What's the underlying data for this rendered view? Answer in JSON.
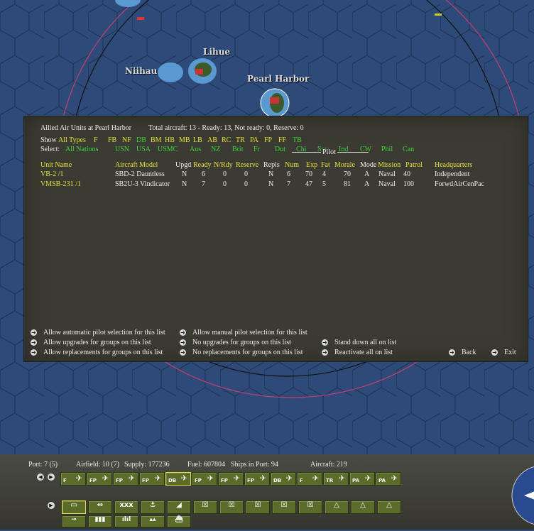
{
  "map": {
    "labels": [
      "Lihue",
      "Niihau",
      "Pearl Harbor"
    ]
  },
  "panel": {
    "title": "Allied Air Units at Pearl Harbor",
    "summary": "Total aircraft: 13 - Ready: 13, Not ready: 0, Reserve: 0",
    "show_label": "Show",
    "types": [
      {
        "t": "All Types",
        "c": "y"
      },
      {
        "t": "F",
        "c": "y"
      },
      {
        "t": "FB",
        "c": "y"
      },
      {
        "t": "NF",
        "c": "y"
      },
      {
        "t": "DB",
        "c": "g"
      },
      {
        "t": "BM",
        "c": "y"
      },
      {
        "t": "HB",
        "c": "y"
      },
      {
        "t": "MB",
        "c": "y"
      },
      {
        "t": "LB",
        "c": "y"
      },
      {
        "t": "AB",
        "c": "y"
      },
      {
        "t": "RC",
        "c": "y"
      },
      {
        "t": "TR",
        "c": "y"
      },
      {
        "t": "PA",
        "c": "y"
      },
      {
        "t": "FP",
        "c": "y"
      },
      {
        "t": "FF",
        "c": "y"
      },
      {
        "t": "TB",
        "c": "g"
      }
    ],
    "select_label": "Select:",
    "nations": [
      "All Nations",
      "USN",
      "USA",
      "USMC",
      "Aus",
      "NZ",
      "Brit",
      "Fr",
      "Dut",
      "Chi",
      "Sov",
      "Ind",
      "CW",
      "Phil",
      "Can"
    ],
    "pilot_group": "Pilot",
    "columns": [
      {
        "t": "Unit Name",
        "c": "y"
      },
      {
        "t": "Aircraft Model",
        "c": "y"
      },
      {
        "t": "Upgd",
        "c": "w"
      },
      {
        "t": "Ready",
        "c": "y"
      },
      {
        "t": "N/Rdy",
        "c": "y"
      },
      {
        "t": "Reserve",
        "c": "y"
      },
      {
        "t": "Repls",
        "c": "w"
      },
      {
        "t": "Num",
        "c": "y"
      },
      {
        "t": "Exp",
        "c": "y"
      },
      {
        "t": "Fat",
        "c": "y"
      },
      {
        "t": "Morale",
        "c": "y"
      },
      {
        "t": "Mode",
        "c": "w"
      },
      {
        "t": "Mission",
        "c": "y"
      },
      {
        "t": "Patrol",
        "c": "y"
      },
      {
        "t": "Headquarters",
        "c": "y"
      }
    ],
    "rows": [
      [
        "VB-2 /1",
        "SBD-2 Dauntless",
        "N",
        "6",
        "0",
        "0",
        "N",
        "6",
        "70",
        "4",
        "70",
        "A",
        "Naval",
        "40",
        "Independent"
      ],
      [
        "VMSB-231 /1",
        "SB2U-3 Vindicator",
        "N",
        "7",
        "0",
        "0",
        "N",
        "7",
        "47",
        "5",
        "81",
        "A",
        "Naval",
        "100",
        "ForwdAirCenPac"
      ]
    ],
    "actions": [
      "Allow automatic pilot selection for this list",
      "Allow manual pilot selection for this list",
      "Allow upgrades for groups on this list",
      "No upgrades for groups on this list",
      "Stand down all on list",
      "Allow replacements for groups on this list",
      "No replacements for groups on this list",
      "Reactivate all on list",
      "Back",
      "Exit"
    ]
  },
  "status": {
    "port": "Port: 7 (5)",
    "airfield": "Airfield: 10 (7)",
    "supply": "Supply: 177236",
    "fuel": "Fuel: 607804",
    "ships": "Ships in Port: 94",
    "aircraft": "Aircraft: 219"
  },
  "air_buttons": [
    "F",
    "FP",
    "FP",
    "FP",
    "DB",
    "FP",
    "FP",
    "FP",
    "DB",
    "F",
    "TR",
    "PA",
    "PA"
  ],
  "unit_buttons": [
    "hq",
    "ship",
    "corps",
    "naval-base",
    "airbase",
    "infantry",
    "infantry",
    "infantry",
    "infantry",
    "infantry",
    "artillery",
    "artillery",
    "artillery"
  ],
  "facility_buttons": [
    "airfield",
    "port",
    "industry",
    "resources",
    "shipyard"
  ]
}
